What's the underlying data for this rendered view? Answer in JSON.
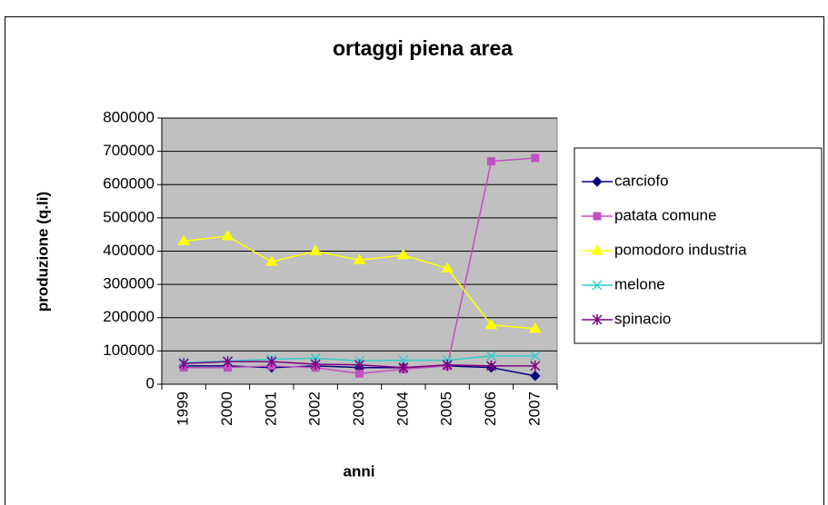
{
  "chart_data": {
    "type": "line",
    "title": "ortaggi piena area",
    "x_label": "anni",
    "y_label": "produzione (q.li)",
    "categories": [
      "1999",
      "2000",
      "2001",
      "2002",
      "2003",
      "2004",
      "2005",
      "2006",
      "2007"
    ],
    "series": [
      {
        "name": "carciofo",
        "color": "#000080",
        "marker": "diamond",
        "values": [
          55000,
          55000,
          50000,
          55000,
          50000,
          50000,
          55000,
          50000,
          25000
        ]
      },
      {
        "name": "patata comune",
        "color": "#c050c0",
        "marker": "square",
        "values": [
          50000,
          50000,
          55000,
          50000,
          32000,
          45000,
          55000,
          670000,
          680000
        ]
      },
      {
        "name": "pomodoro industria",
        "color": "#ffff00",
        "marker": "triangle",
        "values": [
          430000,
          445000,
          368000,
          400000,
          373000,
          388000,
          348000,
          178000,
          167000
        ]
      },
      {
        "name": "melone",
        "color": "#33cccc",
        "marker": "x",
        "values": [
          65000,
          70000,
          75000,
          78000,
          70000,
          72000,
          72000,
          85000,
          85000
        ]
      },
      {
        "name": "spinacio",
        "color": "#800080",
        "marker": "star",
        "values": [
          62000,
          68000,
          68000,
          60000,
          58000,
          50000,
          58000,
          55000,
          55000
        ]
      }
    ],
    "ylim": [
      0,
      800000
    ],
    "yticks": [
      0,
      100000,
      200000,
      300000,
      400000,
      500000,
      600000,
      700000,
      800000
    ],
    "grid": true,
    "legend": "right",
    "plot_background": "#c0c0c0"
  }
}
